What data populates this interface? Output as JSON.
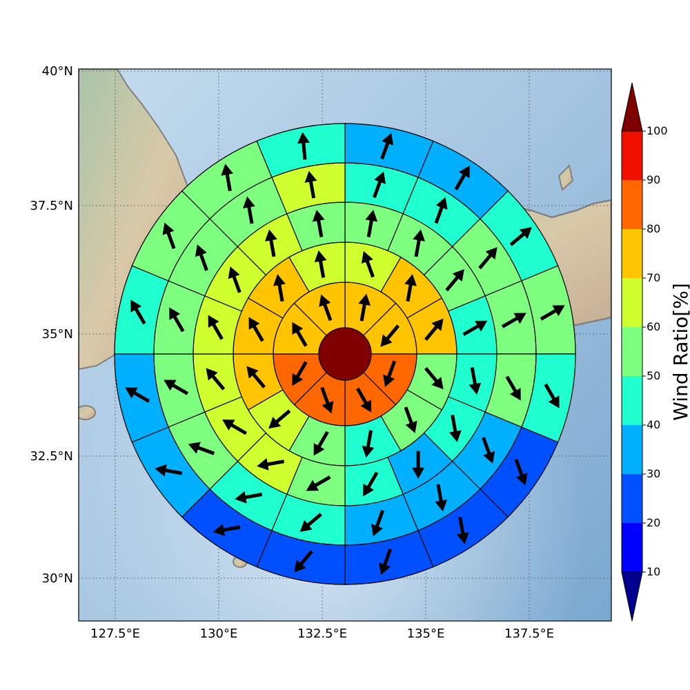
{
  "map": {
    "lon_ticks": [
      "127.5°E",
      "130°E",
      "132.5°E",
      "135°E",
      "137.5°E"
    ],
    "lat_ticks": [
      "30°N",
      "32.5°N",
      "35°N",
      "37.5°N",
      "40°N"
    ]
  },
  "colorbar": {
    "title": "Wind Ratio[%]",
    "ticks": [
      "10",
      "20",
      "30",
      "40",
      "50",
      "60",
      "70",
      "80",
      "90",
      "100"
    ],
    "colors": [
      "#00008f",
      "#0000ff",
      "#0050ff",
      "#00b0ff",
      "#20ffd0",
      "#7fff7f",
      "#d0ff30",
      "#ffc400",
      "#ff6800",
      "#f01000",
      "#800000"
    ]
  },
  "rings": [
    {
      "sectors": 8,
      "values": [
        75,
        75,
        85,
        85,
        80,
        80,
        75,
        75
      ]
    },
    {
      "sectors": 12,
      "values": [
        65,
        75,
        75,
        55,
        55,
        45,
        55,
        65,
        75,
        75,
        75,
        65
      ]
    },
    {
      "sectors": 16,
      "values": [
        55,
        55,
        55,
        45,
        45,
        45,
        35,
        45,
        55,
        65,
        65,
        65,
        65,
        65,
        65,
        55
      ]
    },
    {
      "sectors": 16,
      "values": [
        45,
        45,
        55,
        55,
        55,
        35,
        35,
        35,
        45,
        45,
        55,
        55,
        55,
        55,
        55,
        65
      ]
    },
    {
      "sectors": 16,
      "values": [
        45,
        45,
        55,
        55,
        45,
        35,
        35,
        25,
        35,
        35,
        45,
        45,
        45,
        55,
        55,
        55
      ]
    },
    {
      "sectors": 16,
      "values": [
        35,
        35,
        45,
        55,
        45,
        25,
        25,
        25,
        25,
        25,
        35,
        35,
        45,
        55,
        55,
        45
      ]
    }
  ],
  "arrows": [
    [
      10,
      220,
      200,
      150,
      160,
      210,
      330,
      340
    ],
    [
      340,
      10,
      40,
      140,
      160,
      190,
      210,
      230,
      320,
      330,
      350,
      350
    ],
    [
      10,
      10,
      40,
      60,
      170,
      170,
      180,
      210,
      240,
      260,
      300,
      320,
      330,
      340,
      350,
      350
    ],
    [
      20,
      20,
      40,
      60,
      150,
      160,
      170,
      200,
      230,
      260,
      290,
      300,
      330,
      340,
      350,
      350
    ],
    [
      20,
      30,
      50,
      60,
      150,
      160,
      170,
      200,
      220,
      260,
      280,
      300,
      330,
      340,
      350,
      355
    ],
    [
      20,
      30,
      50,
      60,
      150,
      170,
      180,
      210,
      230,
      260,
      280,
      300,
      320,
      340,
      350,
      355
    ]
  ]
}
